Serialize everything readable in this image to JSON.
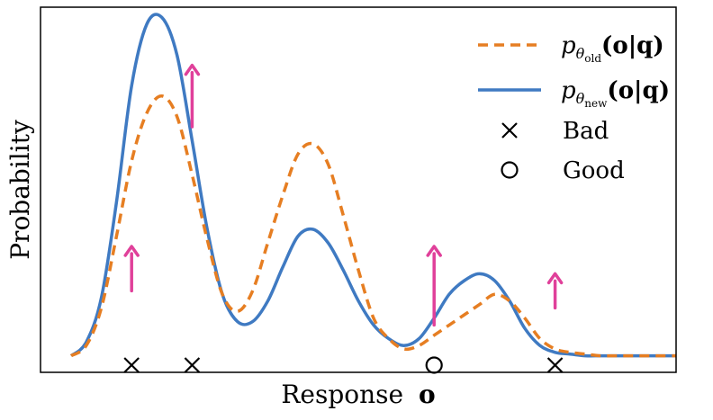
{
  "chart_data": {
    "type": "line",
    "xlabel_text": "Response",
    "xlabel_var": "o",
    "ylabel": "Probability",
    "grid": false,
    "legend_position": "top-right",
    "xlim": [
      0,
      10
    ],
    "ylim": [
      0,
      1
    ],
    "x": [
      0.0,
      0.25,
      0.5,
      0.75,
      1.0,
      1.25,
      1.5,
      1.75,
      2.0,
      2.25,
      2.5,
      2.75,
      3.0,
      3.25,
      3.5,
      3.75,
      4.0,
      4.25,
      4.5,
      4.75,
      5.0,
      5.25,
      5.5,
      5.75,
      6.0,
      6.25,
      6.5,
      6.75,
      7.0,
      7.25,
      7.5,
      7.75,
      8.0,
      8.25,
      8.5,
      8.75,
      9.0,
      9.25,
      9.5,
      9.75,
      10.0
    ],
    "series": [
      {
        "name_base": "p",
        "name_sub_theta": "θ",
        "name_sub_label": "old",
        "name_args": "(o|q)",
        "style": "dashed",
        "color": "#E67E22",
        "values": [
          0.03,
          0.06,
          0.17,
          0.38,
          0.6,
          0.74,
          0.79,
          0.73,
          0.56,
          0.37,
          0.21,
          0.16,
          0.22,
          0.36,
          0.5,
          0.62,
          0.65,
          0.59,
          0.44,
          0.28,
          0.14,
          0.08,
          0.05,
          0.06,
          0.09,
          0.12,
          0.15,
          0.18,
          0.21,
          0.19,
          0.14,
          0.08,
          0.05,
          0.04,
          0.035,
          0.03,
          0.03,
          0.03,
          0.03,
          0.03,
          0.03
        ]
      },
      {
        "name_base": "p",
        "name_sub_theta": "θ",
        "name_sub_label": "new",
        "name_args": "(o|q)",
        "style": "solid",
        "color": "#3F7AC2",
        "values": [
          0.03,
          0.07,
          0.2,
          0.48,
          0.82,
          1.0,
          1.02,
          0.91,
          0.66,
          0.4,
          0.21,
          0.13,
          0.13,
          0.19,
          0.29,
          0.38,
          0.4,
          0.36,
          0.28,
          0.19,
          0.12,
          0.08,
          0.06,
          0.08,
          0.14,
          0.21,
          0.25,
          0.27,
          0.25,
          0.19,
          0.11,
          0.06,
          0.04,
          0.035,
          0.03,
          0.03,
          0.03,
          0.03,
          0.03,
          0.03,
          0.03
        ]
      }
    ],
    "markers": [
      {
        "label": "Bad",
        "symbol": "x",
        "points": [
          1.0,
          2.0,
          8.0
        ]
      },
      {
        "label": "Good",
        "symbol": "o",
        "points": [
          6.0
        ]
      }
    ],
    "arrows": {
      "color": "#E0409A",
      "items": [
        {
          "x": 1.0,
          "from": 0.22,
          "to": 0.35
        },
        {
          "x": 2.0,
          "from": 0.7,
          "to": 0.88
        },
        {
          "x": 6.0,
          "from": 0.12,
          "to": 0.35
        },
        {
          "x": 8.0,
          "from": 0.17,
          "to": 0.27
        }
      ]
    }
  }
}
